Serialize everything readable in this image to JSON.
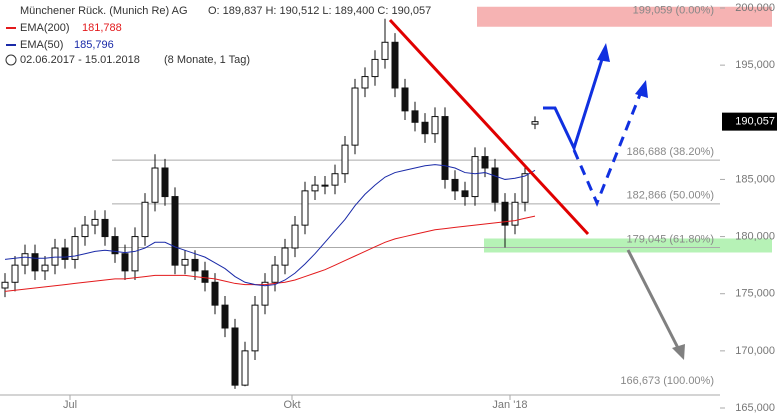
{
  "header": {
    "title": "Münchener Rück. (Munich Re) AG",
    "ohlc": "O: 189,837  H: 190,512  L: 189,400  C: 190,057",
    "period": "02.06.2017 - 15.01.2018",
    "period_note": "(8 Monate, 1 Tag)"
  },
  "chart_data": {
    "type": "candlestick",
    "categories": [
      null,
      null,
      null,
      null,
      null,
      null,
      null,
      null,
      null,
      null,
      null,
      null,
      null,
      null,
      null,
      null,
      null,
      null,
      null,
      null,
      null,
      null,
      null,
      null,
      null,
      null,
      null,
      null,
      null,
      null,
      null,
      null,
      null,
      null,
      null,
      null,
      null,
      null,
      null,
      null,
      null,
      null,
      null,
      null,
      null,
      null,
      null,
      null,
      null,
      null,
      null,
      null,
      null,
      null
    ],
    "open": [
      175500,
      176000,
      177500,
      178500,
      177000,
      177500,
      179000,
      178000,
      180000,
      181000,
      181500,
      180000,
      178500,
      177000,
      180000,
      183000,
      186000,
      183500,
      177500,
      178000,
      177000,
      176000,
      174000,
      172000,
      167000,
      170000,
      174000,
      176000,
      177500,
      179000,
      181000,
      184000,
      184500,
      184500,
      185500,
      188000,
      193000,
      194000,
      195500,
      197000,
      193000,
      191000,
      190000,
      189000,
      190500,
      185000,
      184000,
      183500,
      187000,
      186000,
      183000,
      181000,
      183000,
      189837
    ],
    "high": [
      176800,
      178300,
      179300,
      179300,
      178300,
      179800,
      179800,
      180800,
      181800,
      182300,
      182300,
      180800,
      179300,
      180800,
      183800,
      187200,
      186800,
      184300,
      178800,
      178800,
      177800,
      176800,
      174800,
      172800,
      170800,
      174800,
      176800,
      178300,
      179800,
      181800,
      184800,
      185300,
      185300,
      186300,
      188800,
      193800,
      194800,
      196300,
      199059,
      197800,
      193800,
      191800,
      190800,
      191300,
      191300,
      185800,
      184800,
      187800,
      187800,
      186800,
      183800,
      183800,
      186300,
      190512
    ],
    "low": [
      174700,
      175200,
      176700,
      176200,
      176200,
      176700,
      177200,
      177200,
      179200,
      180200,
      179200,
      177700,
      176200,
      176200,
      179200,
      182200,
      182700,
      176700,
      176700,
      176200,
      175200,
      173200,
      171200,
      166673,
      166900,
      169200,
      173200,
      175200,
      176700,
      178200,
      180200,
      183200,
      183700,
      183700,
      184700,
      187200,
      192200,
      193200,
      194700,
      192200,
      190200,
      189200,
      188200,
      188200,
      184200,
      183200,
      182700,
      182700,
      185200,
      182200,
      179045,
      180200,
      182200,
      189400
    ],
    "close": [
      176000,
      177500,
      178500,
      177000,
      177500,
      179000,
      178000,
      180000,
      181000,
      181500,
      180000,
      178500,
      177000,
      180000,
      183000,
      186000,
      183500,
      177500,
      178000,
      177000,
      176000,
      174000,
      172000,
      167000,
      170000,
      174000,
      176000,
      177500,
      179000,
      181000,
      184000,
      184500,
      184500,
      185500,
      188000,
      193000,
      194000,
      195500,
      197000,
      193000,
      191000,
      190000,
      189000,
      190500,
      185000,
      184000,
      183500,
      187000,
      186000,
      183000,
      181000,
      183000,
      185500,
      190057
    ],
    "series": [
      {
        "name": "EMA(200)",
        "value_label": "181,788",
        "color": "#e31a1c",
        "values": [
          175200,
          175300,
          175400,
          175500,
          175600,
          175700,
          175800,
          175900,
          176000,
          176100,
          176200,
          176300,
          176300,
          176400,
          176500,
          176600,
          176600,
          176600,
          176600,
          176500,
          176400,
          176300,
          176100,
          175900,
          175800,
          175800,
          175800,
          175900,
          176000,
          176200,
          176500,
          176800,
          177100,
          177500,
          177900,
          178300,
          178700,
          179100,
          179500,
          179800,
          180000,
          180200,
          180400,
          180600,
          180700,
          180800,
          180900,
          181000,
          181100,
          181200,
          181300,
          181400,
          181600,
          181788
        ]
      },
      {
        "name": "EMA(50)",
        "value_label": "185,796",
        "color": "#1a2aa8",
        "values": [
          178000,
          178100,
          178200,
          178100,
          178100,
          178200,
          178200,
          178300,
          178500,
          178700,
          178800,
          178700,
          178600,
          178700,
          179000,
          179500,
          179500,
          179100,
          178800,
          178500,
          178200,
          177700,
          177200,
          176500,
          176000,
          175800,
          175700,
          175800,
          176200,
          176800,
          177600,
          178500,
          179500,
          180500,
          181500,
          182700,
          183700,
          184500,
          185200,
          185600,
          185800,
          186000,
          186200,
          186300,
          186200,
          186000,
          185600,
          185500,
          185600,
          185300,
          185000,
          185100,
          185300,
          185796
        ]
      }
    ],
    "fib_levels": [
      {
        "value": 199059,
        "label": "199,059 (0.00%)"
      },
      {
        "value": 186688,
        "label": "186,688 (38.20%)"
      },
      {
        "value": 182866,
        "label": "182,866 (50.00%)"
      },
      {
        "value": 179045,
        "label": "179,045 (61.80%)"
      },
      {
        "value": 166673,
        "label": "166,673 (100.00%)"
      }
    ],
    "price_marker": {
      "value": 190057,
      "label": "190,057"
    },
    "xlim": [
      -0.5,
      77
    ],
    "xticks": [
      {
        "value": 6.5,
        "label": "Jul"
      },
      {
        "value": 28.7,
        "label": "Okt"
      },
      {
        "value": 50.5,
        "label": "Jan '18"
      }
    ],
    "ylim": [
      165000,
      200000
    ],
    "yticks": [
      {
        "value": 165000,
        "label": "165,000"
      },
      {
        "value": 170000,
        "label": "170,000"
      },
      {
        "value": 175000,
        "label": "175,000"
      },
      {
        "value": 180000,
        "label": "180,000"
      },
      {
        "value": 185000,
        "label": "185,000"
      },
      {
        "value": 195000,
        "label": "195,000"
      },
      {
        "value": 200000,
        "label": "200,000"
      }
    ],
    "up_color": "#ffffff",
    "down_color": "#111111"
  }
}
